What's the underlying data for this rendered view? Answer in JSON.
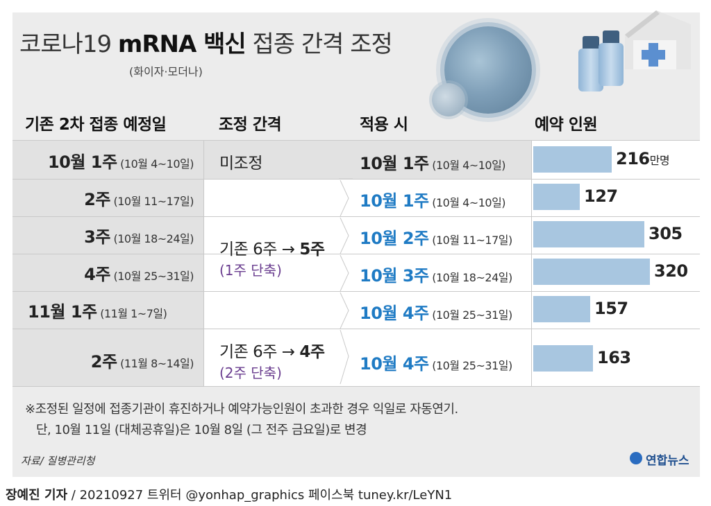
{
  "title": {
    "part1": "코로나19 ",
    "part2": "mRNA 백신",
    "part3": " 접종 간격 조정",
    "subtitle": "(화이자·모더나)"
  },
  "headers": {
    "col1": "기존 2차 접종 예정일",
    "col2": "조정 간격",
    "col3": "적용 시",
    "col4": "예약 인원"
  },
  "rows": [
    {
      "orig_big": "10월 1주",
      "orig_sm": "(10월 4~10일)",
      "new_big": "10월 1주",
      "new_sm": "(10월 4~10일)",
      "value_label": "216",
      "unit": "만명"
    },
    {
      "orig_big": "2주",
      "orig_sm": "(10월 11~17일)",
      "new_big": "10월 1주",
      "new_sm": "(10월 4~10일)",
      "value_label": "127",
      "unit": ""
    },
    {
      "orig_big": "3주",
      "orig_sm": "(10월 18~24일)",
      "new_big": "10월 2주",
      "new_sm": "(10월 11~17일)",
      "value_label": "305",
      "unit": ""
    },
    {
      "orig_big": "4주",
      "orig_sm": "(10월 25~31일)",
      "new_big": "10월 3주",
      "new_sm": "(10월 18~24일)",
      "value_label": "320",
      "unit": ""
    },
    {
      "orig_big": "11월 1주",
      "orig_sm": "(11월 1~7일)",
      "new_big": "10월 4주",
      "new_sm": "(10월 25~31일)",
      "value_label": "157",
      "unit": ""
    },
    {
      "orig_big": "2주",
      "orig_sm": "(11월 8~14일)",
      "new_big": "10월 4주",
      "new_sm": "(10월 25~31일)",
      "value_label": "163",
      "unit": ""
    }
  ],
  "adjustments": {
    "none": "미조정",
    "a_text": "기존 6주 → ",
    "a_bold": "5주",
    "a_sub": "(1주 단축)",
    "b_text": "기존 6주 → ",
    "b_bold": "4주",
    "b_sub": "(2주 단축)"
  },
  "notes": {
    "line1": "※조정된 일정에 접종기관이 휴진하거나 예약가능인원이 초과한 경우 익일로 자동연기.",
    "line2": "단, 10월 11일 (대체공휴일)은 10월 8일 (그 전주 금요일)로 변경"
  },
  "source": "자료/ 질병관리청",
  "logo": "연합뉴스",
  "credit": {
    "author": "장예진 기자",
    "rest": " / 20210927 트위터 @yonhap_graphics  페이스북 tuney.kr/LeYN1"
  },
  "colors": {
    "bar": "#a8c6e0",
    "highlight_blue": "#1f7bc4",
    "highlight_purple": "#6a3d8f"
  },
  "chart_data": {
    "type": "bar",
    "categories": [
      "10월 1주",
      "10월 2주",
      "10월 3주",
      "10월 4주",
      "11월 1주",
      "11월 2주"
    ],
    "values": [
      216,
      127,
      305,
      320,
      157,
      163
    ],
    "ylabel": "예약 인원",
    "unit": "만명",
    "orientation": "horizontal"
  }
}
